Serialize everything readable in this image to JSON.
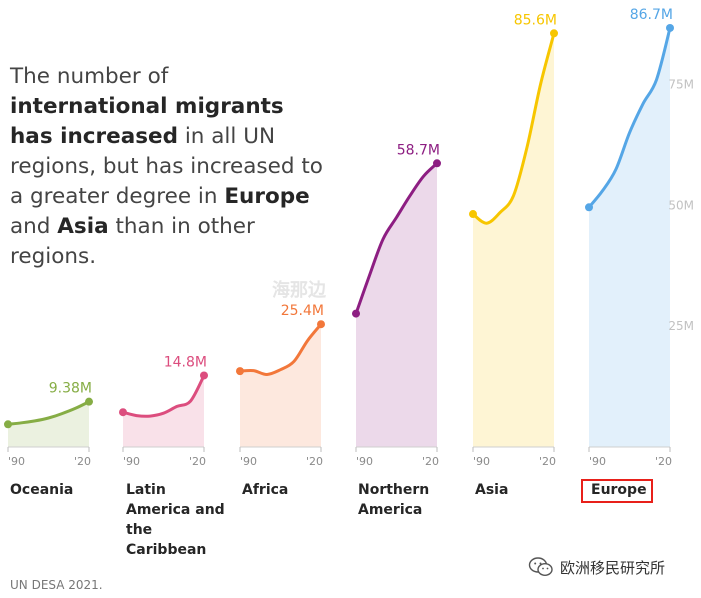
{
  "headline": {
    "p1": "The number of ",
    "b1": "international migrants has increased",
    "p2": " in all UN regions, but has increased to a greater degree in ",
    "b2": "Europe",
    "p3": " and ",
    "b3": "Asia",
    "p4": " than in other regions."
  },
  "chart_data": {
    "type": "area",
    "y_unit": "M",
    "ylim": [
      0,
      90
    ],
    "y_ticks": [
      {
        "value": 25,
        "label": "25M"
      },
      {
        "value": 50,
        "label": "50M"
      },
      {
        "value": 75,
        "label": "75M"
      }
    ],
    "x_tick_labels": [
      "'90",
      "'20"
    ],
    "series": [
      {
        "name": "Oceania",
        "color": "#86ad45",
        "start": 4.7,
        "end_label": "9.38M",
        "values": [
          4.7,
          5.0,
          5.4,
          6.0,
          6.9,
          8.0,
          9.38
        ]
      },
      {
        "name": "Latin America and the Caribbean",
        "color": "#dc4d7e",
        "start": 7.2,
        "end_label": "14.8M",
        "values": [
          7.2,
          6.5,
          6.4,
          7.0,
          8.4,
          9.5,
          14.8
        ]
      },
      {
        "name": "Africa",
        "color": "#f2773a",
        "start": 15.7,
        "end_label": "25.4M",
        "values": [
          15.7,
          15.8,
          15.0,
          16.0,
          17.7,
          22.0,
          25.4
        ]
      },
      {
        "name": "Northern America",
        "color": "#8d1e82",
        "start": 27.6,
        "end_label": "58.7M",
        "values": [
          27.6,
          35.5,
          43.0,
          47.5,
          52.0,
          56.0,
          58.7
        ]
      },
      {
        "name": "Asia",
        "color": "#f7c600",
        "start": 48.2,
        "end_label": "85.6M",
        "values": [
          48.2,
          46.3,
          48.5,
          52.0,
          62.0,
          75.0,
          85.6
        ]
      },
      {
        "name": "Europe",
        "color": "#55a6e6",
        "start": 49.6,
        "end_label": "86.7M",
        "values": [
          49.6,
          53.0,
          57.5,
          65.0,
          71.0,
          76.0,
          86.7
        ]
      }
    ]
  },
  "region_labels": [
    "Oceania",
    "Latin\nAmerica and\nthe\nCaribbean",
    "Africa",
    "Northern\nAmerica",
    "Asia",
    "Europe"
  ],
  "source": "UN DESA 2021.",
  "wechat": {
    "icon": "wechat-icon",
    "account": "欧洲移民研究所"
  },
  "watermark": "海那边"
}
